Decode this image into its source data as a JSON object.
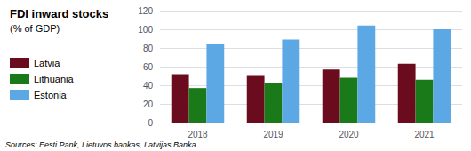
{
  "chart_data": {
    "type": "bar",
    "title": "FDI inward stocks",
    "subtitle": "(% of GDP)",
    "categories": [
      "2018",
      "2019",
      "2020",
      "2021"
    ],
    "series": [
      {
        "name": "Latvia",
        "color": "#6B0B1E",
        "values": [
          52,
          51,
          57,
          63
        ]
      },
      {
        "name": "Lithuania",
        "color": "#1A7A1A",
        "values": [
          37,
          42,
          48,
          46
        ]
      },
      {
        "name": "Estonia",
        "color": "#5BA8E5",
        "values": [
          84,
          89,
          104,
          100
        ]
      }
    ],
    "ylim": [
      0,
      120
    ],
    "yticks": [
      0,
      20,
      40,
      60,
      80,
      100,
      120
    ],
    "grid": true,
    "legend": "left",
    "source": "Sources: Eesti Pank, Lietuvos bankas, Latvijas Banka."
  }
}
